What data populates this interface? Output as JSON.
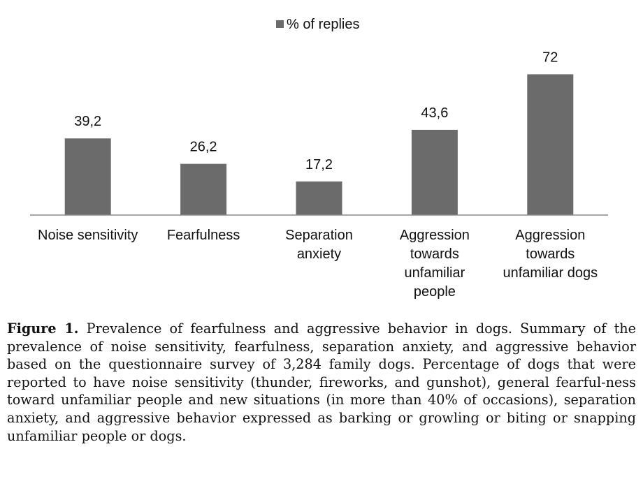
{
  "chart_data": {
    "type": "bar",
    "title": "",
    "xlabel": "",
    "ylabel": "",
    "ylim": [
      0,
      80
    ],
    "grid": false,
    "legend": {
      "position": "top-center",
      "entries": [
        "% of replies"
      ]
    },
    "categories": [
      [
        "Noise sensitivity"
      ],
      [
        "Fearfulness"
      ],
      [
        "Separation",
        "anxiety"
      ],
      [
        "Aggression",
        "towards",
        "unfamiliar",
        "people"
      ],
      [
        "Aggression",
        "towards",
        "unfamiliar dogs"
      ]
    ],
    "series": [
      {
        "name": "% of replies",
        "values": [
          39.2,
          26.2,
          17.2,
          43.6,
          72
        ],
        "labels": [
          "39,2",
          "26,2",
          "17,2",
          "43,6",
          "72"
        ],
        "color": "#6b6b6b"
      }
    ]
  },
  "caption": {
    "label": "Figure 1.",
    "text": "Prevalence of fearfulness and aggressive behavior in dogs. Summary of the prevalence of noise sensitivity, fearfulness, separation anxiety, and aggressive behavior based on the questionnaire survey of 3,284 family dogs. Percentage of dogs that were reported to have noise sensitivity (thunder, fireworks, and gunshot), general fearful-ness toward unfamiliar people and new situations (in more than 40% of occasions), separation anxiety, and aggressive behavior expressed as barking or growling or biting or snapping unfamiliar people or dogs."
  }
}
